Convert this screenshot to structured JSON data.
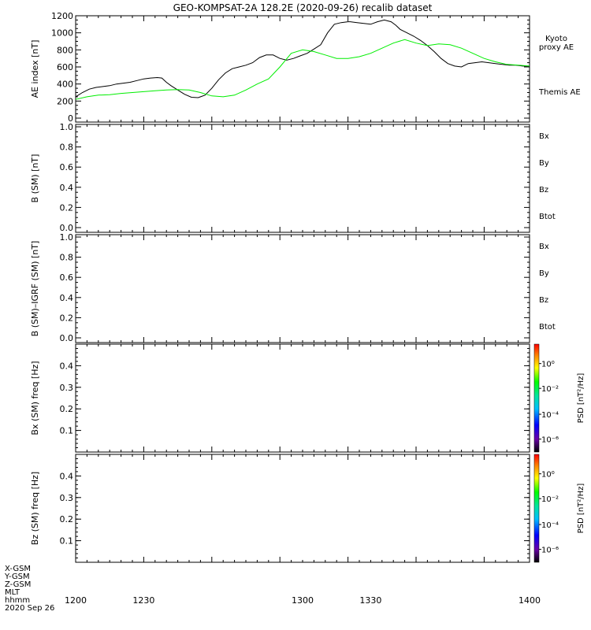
{
  "title": "GEO-KOMPSAT-2A 128.2E (2020-09-26) recalib dataset",
  "colors": {
    "black": "#000000",
    "green": "#00ee00",
    "blue": "#0000cc",
    "red": "#cc0000"
  },
  "xaxis": {
    "range": [
      1200,
      1400
    ],
    "tick_labels": [
      "1200",
      "1230",
      "1300",
      "1330",
      "1400"
    ]
  },
  "footer_labels": [
    "X-GSM",
    "Y-GSM",
    "Z-GSM",
    "MLT",
    "hhmm",
    "2020 Sep 26"
  ],
  "colorbar": {
    "label": "PSD [nT²/Hz]",
    "tick_labels": [
      "10⁰",
      "10⁻²",
      "10⁻⁴",
      "10⁻⁶"
    ]
  },
  "chart_data": [
    {
      "type": "line",
      "ylabel": "AE index [nT]",
      "ylim": [
        0,
        1200
      ],
      "yticks": [
        "0",
        "200",
        "400",
        "600",
        "800",
        "1000",
        "1200"
      ],
      "legend": [
        {
          "text": "Kyoto proxy AE",
          "color": "green"
        },
        {
          "text": "Themis AE",
          "color": "black"
        }
      ],
      "series": [
        {
          "name": "Themis AE",
          "color": "black",
          "x": [
            1200,
            1203,
            1206,
            1209,
            1212,
            1215,
            1218,
            1221,
            1224,
            1227,
            1230,
            1233,
            1236,
            1238,
            1240,
            1242,
            1245,
            1248,
            1251,
            1254,
            1257,
            1260,
            1263,
            1266,
            1269,
            1272,
            1275,
            1278,
            1281,
            1284,
            1287,
            1290,
            1293,
            1296,
            1299,
            1302,
            1305,
            1308,
            1311,
            1314,
            1317,
            1320,
            1321,
            1324,
            1327,
            1330,
            1333,
            1336,
            1339,
            1341,
            1343,
            1346,
            1349,
            1352,
            1355,
            1358,
            1361,
            1364,
            1367,
            1370,
            1373,
            1376,
            1379,
            1382,
            1385,
            1388,
            1391,
            1394,
            1397,
            1400
          ],
          "values": [
            250,
            300,
            340,
            360,
            370,
            380,
            400,
            410,
            420,
            440,
            460,
            470,
            475,
            470,
            420,
            380,
            330,
            280,
            245,
            240,
            270,
            350,
            450,
            530,
            580,
            600,
            620,
            650,
            710,
            740,
            740,
            700,
            680,
            700,
            730,
            760,
            810,
            860,
            1000,
            1100,
            1120,
            1130,
            1130,
            1120,
            1110,
            1100,
            1130,
            1150,
            1130,
            1090,
            1040,
            1000,
            960,
            910,
            850,
            780,
            700,
            640,
            610,
            600,
            640,
            650,
            660,
            650,
            640,
            630,
            620,
            620,
            610,
            610
          ]
        },
        {
          "name": "Kyoto proxy AE",
          "color": "green",
          "x": [
            1200,
            1205,
            1210,
            1215,
            1220,
            1225,
            1230,
            1235,
            1240,
            1245,
            1250,
            1255,
            1260,
            1265,
            1270,
            1275,
            1280,
            1285,
            1290,
            1295,
            1300,
            1305,
            1310,
            1315,
            1320,
            1325,
            1330,
            1335,
            1340,
            1345,
            1350,
            1355,
            1360,
            1365,
            1370,
            1375,
            1380,
            1385,
            1390,
            1395,
            1400
          ],
          "values": [
            220,
            250,
            270,
            275,
            290,
            300,
            310,
            320,
            330,
            335,
            330,
            300,
            260,
            250,
            270,
            330,
            400,
            460,
            600,
            760,
            800,
            780,
            740,
            700,
            700,
            720,
            760,
            820,
            880,
            920,
            880,
            850,
            870,
            860,
            820,
            760,
            700,
            660,
            630,
            620,
            610
          ]
        }
      ]
    },
    {
      "type": "line",
      "ylabel": "B (SM) [nT]",
      "ylim": [
        0,
        1
      ],
      "yticks": [
        "0.0",
        "0.2",
        "0.4",
        "0.6",
        "0.8",
        "1.0"
      ],
      "legend": [
        {
          "text": "Bx",
          "color": "blue"
        },
        {
          "text": "By",
          "color": "green"
        },
        {
          "text": "Bz",
          "color": "red"
        },
        {
          "text": "Btot",
          "color": "black"
        }
      ],
      "series": []
    },
    {
      "type": "line",
      "ylabel": "B (SM)–IGRF (SM) [nT]",
      "ylim": [
        0,
        1
      ],
      "yticks": [
        "0.0",
        "0.2",
        "0.4",
        "0.6",
        "0.8",
        "1.0"
      ],
      "legend": [
        {
          "text": "Bx",
          "color": "blue"
        },
        {
          "text": "By",
          "color": "green"
        },
        {
          "text": "Bz",
          "color": "red"
        },
        {
          "text": "Btot",
          "color": "black"
        }
      ],
      "series": []
    },
    {
      "type": "heatmap",
      "ylabel": "Bx (SM) freq [Hz]",
      "ylim": [
        0,
        0.5
      ],
      "yticks": [
        "0.1",
        "0.2",
        "0.3",
        "0.4"
      ],
      "colorbar": true,
      "series": []
    },
    {
      "type": "heatmap",
      "ylabel": "Bz (SM) freq [Hz]",
      "ylim": [
        0,
        0.5
      ],
      "yticks": [
        "0.1",
        "0.2",
        "0.3",
        "0.4"
      ],
      "colorbar": true,
      "series": []
    }
  ]
}
